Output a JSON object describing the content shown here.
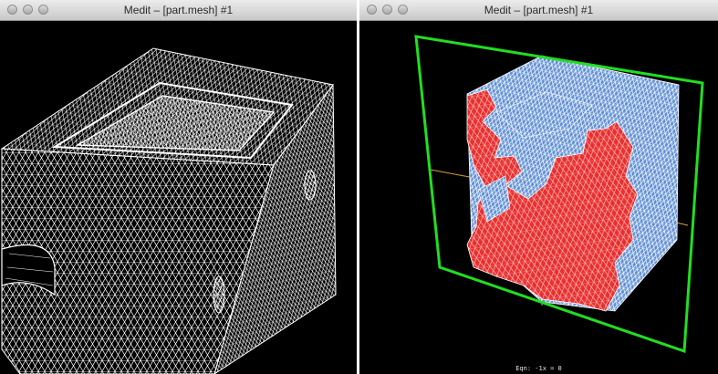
{
  "windows": [
    {
      "title": "Medit – [part.mesh] #1",
      "viewport": {
        "mode": "wireframe",
        "mesh_color": "#ffffff"
      }
    },
    {
      "title": "Medit – [part.mesh] #1",
      "viewport": {
        "mode": "clipping",
        "cut_color": "#e8302f",
        "surface_color": "#5f8fd6",
        "clip_plane_color": "#22dd22",
        "axis_color": "#d8a23a",
        "equation_label": "Eqn:  -1x = 0"
      }
    }
  ]
}
